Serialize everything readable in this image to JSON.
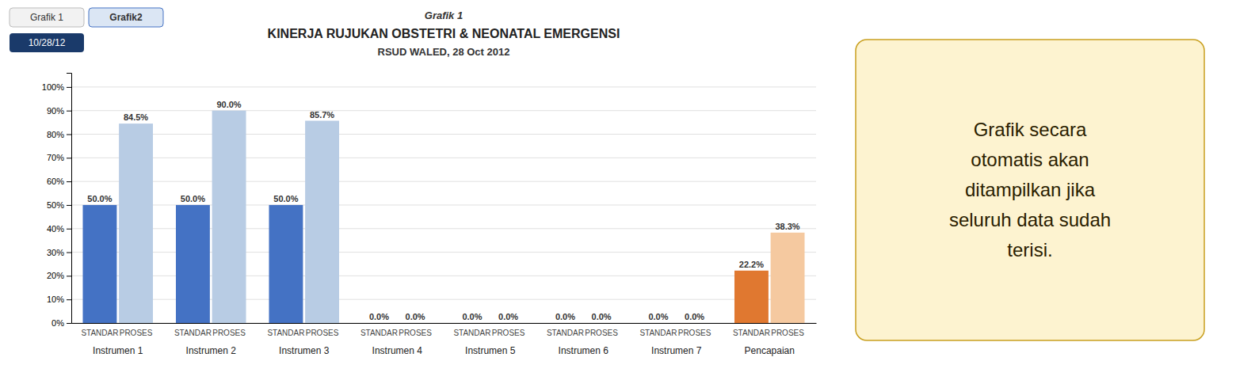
{
  "chart_data": {
    "type": "bar",
    "title": "KINERJA RUJUKAN OBSTETRI & NEONATAL EMERGENSI",
    "subtitle": "RSUD WALED, 28 Oct 2012",
    "annotations": [
      "Grafik 1",
      "Grafik 1",
      "Grafik2",
      "10/28/12",
      "Grafik secara\notomatis akan\nditampilkan jika\nseluruh data sudah\nterisi."
    ],
    "categories": [
      "Instrumen 1",
      "Instrumen 2",
      "Instrumen 3",
      "Instrumen 4",
      "Instrumen 5",
      "Instrumen 6",
      "Instrumen 7",
      "Pencapaian"
    ],
    "series": [
      {
        "name": "STANDAR",
        "colors": [
          "#4472c4",
          "#4472c4",
          "#4472c4",
          "#4472c4",
          "#4472c4",
          "#4472c4",
          "#4472c4",
          "#e07830"
        ],
        "values": [
          50.0,
          50.0,
          50.0,
          0.0,
          0.0,
          0.0,
          0.0,
          22.2
        ],
        "value_labels": [
          "50.0%",
          "50.0%",
          "50.0%",
          "0.0%",
          "0.0%",
          "0.0%",
          "0.0%",
          "22.2%"
        ]
      },
      {
        "name": "PROSES",
        "colors": [
          "#b8cce4",
          "#b8cce4",
          "#b8cce4",
          "#b8cce4",
          "#b8cce4",
          "#b8cce4",
          "#b8cce4",
          "#f5c9a0"
        ],
        "values": [
          84.5,
          90.0,
          85.7,
          0.0,
          0.0,
          0.0,
          0.0,
          38.3
        ],
        "value_labels": [
          "84.5%",
          "90.0%",
          "85.7%",
          "0.0%",
          "0.0%",
          "0.0%",
          "0.0%",
          "38.3%"
        ]
      }
    ],
    "ylim": [
      0,
      106
    ],
    "yticks": [
      {
        "value": 0,
        "label": "0%"
      },
      {
        "value": 10,
        "label": "10%"
      },
      {
        "value": 20,
        "label": "20%"
      },
      {
        "value": 30,
        "label": "30%"
      },
      {
        "value": 40,
        "label": "40%"
      },
      {
        "value": 50,
        "label": "50%"
      },
      {
        "value": 60,
        "label": "60%"
      },
      {
        "value": 70,
        "label": "70%"
      },
      {
        "value": 80,
        "label": "80%"
      },
      {
        "value": 90,
        "label": "90%"
      },
      {
        "value": 100,
        "label": "100%"
      }
    ],
    "grid": true,
    "data_labels": true
  }
}
